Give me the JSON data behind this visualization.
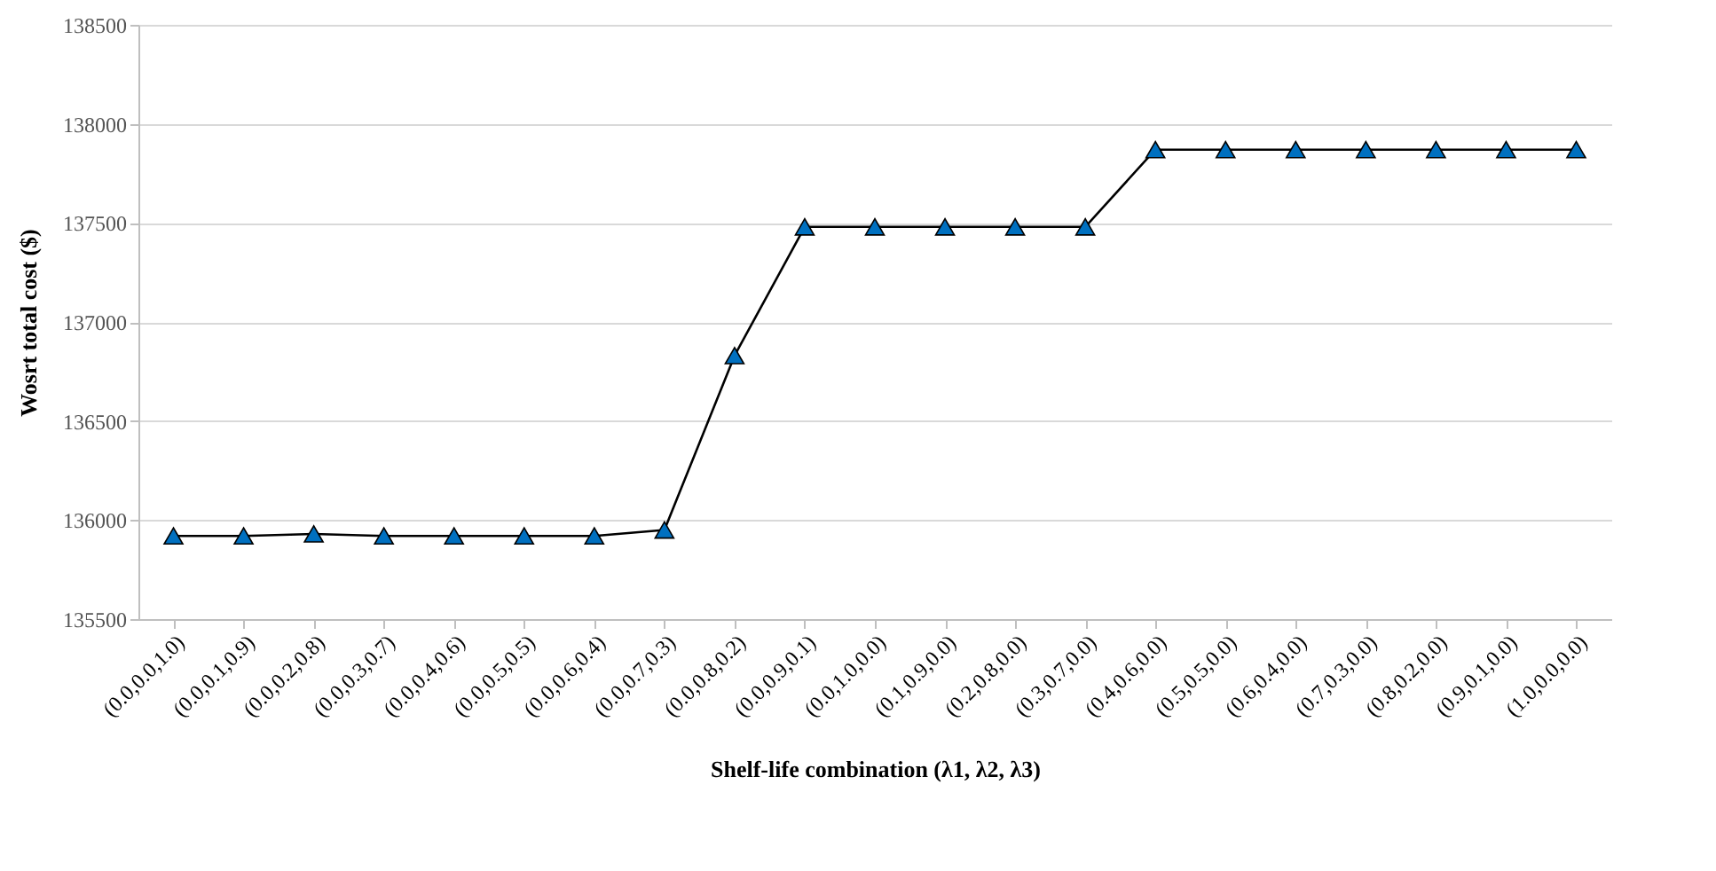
{
  "chart_data": {
    "type": "line",
    "xlabel": "Shelf-life combination (λ1, λ2, λ3)",
    "ylabel": "Wosrt total cost ($)",
    "categories": [
      "(0.0,0.0,1.0)",
      "(0.0,0.1,0.9)",
      "(0.0,0.2,0.8)",
      "(0.0,0.3,0.7)",
      "(0.0,0.4,0.6)",
      "(0.0,0.5,0.5)",
      "(0.0,0.6,0.4)",
      "(0.0,0.7,0.3)",
      "(0.0,0.8,0.2)",
      "(0.0,0.9,0.1)",
      "(0.0,1.0,0.0)",
      "(0.1,0.9,0.0)",
      "(0.2,0.8,0.0)",
      "(0.3,0.7,0.0)",
      "(0.4,0.6,0.0)",
      "(0.5,0.5,0.0)",
      "(0.6,0.4,0.0)",
      "(0.7,0.3,0.0)",
      "(0.8,0.2,0.0)",
      "(0.9,0.1,0.0)",
      "(1.0,0.0,0.0)"
    ],
    "series": [
      {
        "color": "#0070c0",
        "values": [
          135920,
          135920,
          135930,
          135920,
          135920,
          135920,
          135920,
          135950,
          136830,
          137480,
          137480,
          137480,
          137480,
          137480,
          137870,
          137870,
          137870,
          137870,
          137870,
          137870,
          137870
        ]
      }
    ],
    "ylim": [
      135500,
      138500
    ],
    "yticks": [
      135500,
      136000,
      136500,
      137000,
      137500,
      138000,
      138500
    ],
    "grid": "y",
    "marker": "triangle",
    "line_style": "solid"
  }
}
